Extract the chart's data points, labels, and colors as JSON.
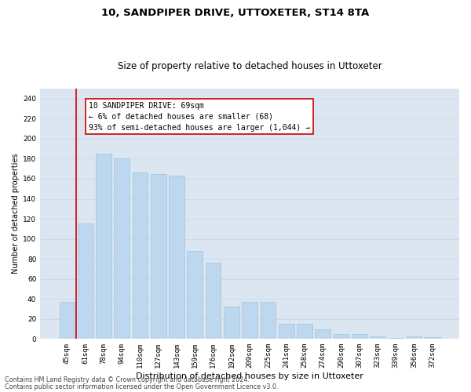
{
  "title": "10, SANDPIPER DRIVE, UTTOXETER, ST14 8TA",
  "subtitle": "Size of property relative to detached houses in Uttoxeter",
  "xlabel": "Distribution of detached houses by size in Uttoxeter",
  "ylabel": "Number of detached properties",
  "categories": [
    "45sqm",
    "61sqm",
    "78sqm",
    "94sqm",
    "110sqm",
    "127sqm",
    "143sqm",
    "159sqm",
    "176sqm",
    "192sqm",
    "209sqm",
    "225sqm",
    "241sqm",
    "258sqm",
    "274sqm",
    "290sqm",
    "307sqm",
    "323sqm",
    "339sqm",
    "356sqm",
    "372sqm"
  ],
  "values": [
    37,
    115,
    185,
    180,
    166,
    165,
    163,
    88,
    76,
    32,
    37,
    37,
    15,
    15,
    10,
    5,
    5,
    3,
    1,
    3,
    2
  ],
  "bar_color": "#bdd7ee",
  "bar_edge_color": "#9ec6e0",
  "vline_x": 0.5,
  "vline_color": "#cc0000",
  "annotation_box_text": "10 SANDPIPER DRIVE: 69sqm\n← 6% of detached houses are smaller (68)\n93% of semi-detached houses are larger (1,044) →",
  "box_color": "#ffffff",
  "box_edge_color": "#cc0000",
  "ylim": [
    0,
    250
  ],
  "yticks": [
    0,
    20,
    40,
    60,
    80,
    100,
    120,
    140,
    160,
    180,
    200,
    220,
    240
  ],
  "grid_color": "#c8d8e8",
  "background_color": "#dce6f1",
  "footnote1": "Contains HM Land Registry data © Crown copyright and database right 2024.",
  "footnote2": "Contains public sector information licensed under the Open Government Licence v3.0.",
  "title_fontsize": 9.5,
  "subtitle_fontsize": 8.5,
  "xlabel_fontsize": 8,
  "ylabel_fontsize": 7,
  "tick_fontsize": 6.5,
  "footnote_fontsize": 5.8,
  "annotation_fontsize": 7
}
